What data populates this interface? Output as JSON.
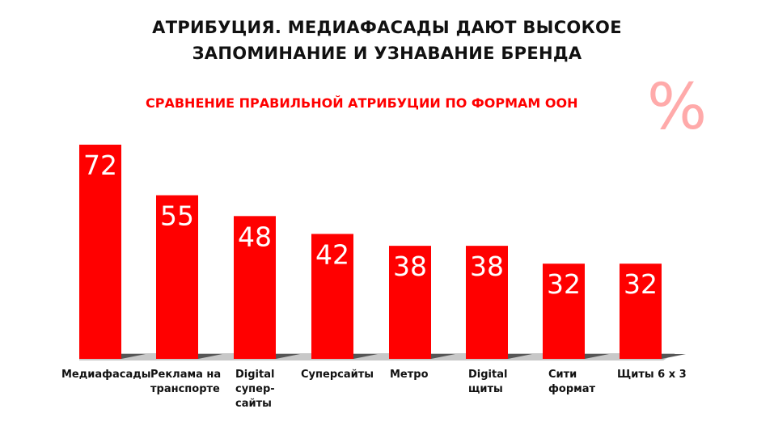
{
  "chart_data": {
    "type": "bar",
    "title": "АТРИБУЦИЯ. МЕДИАФАСАДЫ ДАЮТ ВЫСОКОЕ ЗАПОМИНАНИЕ И УЗНАВАНИЕ БРЕНДА",
    "title_line1": "АТРИБУЦИЯ. МЕДИАФАСАДЫ ДАЮТ ВЫСОКОЕ",
    "title_line2": "ЗАПОМИНАНИЕ И УЗНАВАНИЕ БРЕНДА",
    "subtitle": "СРАВНЕНИЕ ПРАВИЛЬНОЙ АТРИБУЦИИ ПО ФОРМАМ ООН",
    "unit_symbol": "%",
    "categories": [
      "Медиафасады",
      "Реклама на\nтранспорте",
      "Digital\nсупер-\nсайты",
      "Суперсайты",
      "Метро",
      "Digital\nщиты",
      "Сити\nформат",
      "Щиты 6 х 3"
    ],
    "values": [
      72,
      55,
      48,
      42,
      38,
      38,
      32,
      32
    ],
    "xlabel": "",
    "ylabel": "",
    "ylim": [
      0,
      72
    ],
    "grid": false,
    "colors": {
      "bar": "#ff0000",
      "label": "#ffffff",
      "percent": "#ffaaaa",
      "floor": "#c8c8c8"
    }
  }
}
